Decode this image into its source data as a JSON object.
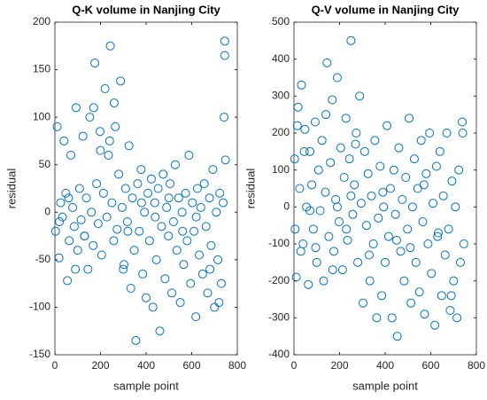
{
  "chart_data": [
    {
      "type": "scatter",
      "title": "Q-K volume in Nanjing City",
      "xlabel": "sample point",
      "ylabel": "residual",
      "color": "#0072bd",
      "xlim": [
        0,
        800
      ],
      "xticks": [
        0,
        200,
        400,
        600,
        800
      ],
      "ylim": [
        -150,
        200
      ],
      "yticks": [
        -150,
        -100,
        -50,
        0,
        50,
        100,
        150,
        200
      ],
      "x": [
        3,
        10,
        18,
        25,
        33,
        40,
        48,
        55,
        63,
        70,
        78,
        85,
        93,
        100,
        108,
        115,
        123,
        130,
        138,
        145,
        153,
        160,
        168,
        175,
        183,
        190,
        198,
        205,
        213,
        220,
        228,
        235,
        243,
        250,
        258,
        265,
        273,
        280,
        288,
        295,
        303,
        310,
        318,
        325,
        333,
        340,
        348,
        355,
        363,
        370,
        378,
        385,
        393,
        400,
        408,
        415,
        423,
        430,
        438,
        445,
        453,
        460,
        468,
        475,
        483,
        490,
        498,
        505,
        513,
        520,
        528,
        535,
        543,
        550,
        558,
        565,
        573,
        580,
        588,
        595,
        603,
        610,
        618,
        625,
        633,
        640,
        648,
        655,
        663,
        670,
        678,
        685,
        693,
        700,
        708,
        715,
        723,
        730,
        738,
        745,
        745,
        742,
        748,
        20,
        60,
        130,
        200,
        260,
        320,
        380,
        440,
        500,
        560,
        620,
        680,
        720,
        90,
        170,
        240,
        300
      ],
      "y": [
        -20,
        90,
        -48,
        10,
        -5,
        75,
        20,
        -72,
        -30,
        60,
        5,
        -15,
        110,
        -40,
        25,
        -8,
        80,
        -25,
        15,
        -60,
        100,
        0,
        -35,
        157,
        30,
        -12,
        85,
        -45,
        20,
        130,
        -5,
        60,
        175,
        10,
        -30,
        90,
        -18,
        40,
        138,
        5,
        -55,
        25,
        -10,
        70,
        -80,
        15,
        -40,
        -135,
        30,
        -20,
        45,
        -65,
        0,
        -90,
        20,
        -30,
        35,
        -100,
        10,
        -50,
        25,
        -125,
        -15,
        40,
        -70,
        5,
        -25,
        30,
        -85,
        -10,
        50,
        -40,
        15,
        -95,
        0,
        -55,
        20,
        -30,
        60,
        -75,
        10,
        -20,
        -110,
        25,
        -45,
        5,
        -65,
        30,
        -15,
        -85,
        15,
        -35,
        45,
        -100,
        0,
        -50,
        20,
        -75,
        10,
        180,
        165,
        100,
        55,
        -10,
        15,
        -25,
        65,
        115,
        -20,
        10,
        -5,
        15,
        -20,
        -5,
        -60,
        -95,
        -60,
        110,
        75,
        -60
      ]
    },
    {
      "type": "scatter",
      "title": "Q-V volume in Nanjing City",
      "xlabel": "sample point",
      "ylabel": "residual",
      "color": "#0072bd",
      "xlim": [
        0,
        800
      ],
      "xticks": [
        0,
        200,
        400,
        600,
        800
      ],
      "ylim": [
        -400,
        500
      ],
      "yticks": [
        -400,
        -300,
        -200,
        -100,
        0,
        100,
        200,
        300,
        400,
        500
      ],
      "x": [
        3,
        10,
        18,
        25,
        33,
        40,
        48,
        55,
        63,
        70,
        78,
        85,
        93,
        100,
        108,
        115,
        123,
        130,
        138,
        145,
        153,
        160,
        168,
        175,
        183,
        190,
        198,
        205,
        213,
        220,
        228,
        235,
        243,
        250,
        258,
        265,
        273,
        280,
        288,
        295,
        303,
        310,
        318,
        325,
        333,
        340,
        348,
        355,
        363,
        370,
        378,
        385,
        393,
        400,
        408,
        415,
        423,
        430,
        438,
        445,
        453,
        460,
        468,
        475,
        483,
        490,
        498,
        505,
        513,
        520,
        528,
        535,
        543,
        550,
        558,
        565,
        573,
        580,
        588,
        595,
        603,
        610,
        618,
        625,
        633,
        640,
        648,
        655,
        663,
        670,
        678,
        685,
        693,
        700,
        708,
        715,
        723,
        730,
        738,
        745,
        5,
        15,
        30,
        45,
        70,
        95,
        140,
        190,
        230,
        270,
        330,
        390,
        450,
        510,
        570,
        630,
        690,
        740,
        250,
        170
      ],
      "y": [
        130,
        -190,
        270,
        50,
        330,
        -100,
        210,
        0,
        -210,
        150,
        60,
        -60,
        230,
        -150,
        100,
        -10,
        180,
        -200,
        40,
        390,
        -80,
        120,
        290,
        -120,
        20,
        350,
        -40,
        160,
        -170,
        80,
        240,
        -90,
        130,
        450,
        -20,
        60,
        200,
        -150,
        300,
        10,
        -260,
        150,
        -50,
        90,
        -200,
        30,
        -100,
        180,
        -300,
        -30,
        110,
        -240,
        0,
        -150,
        220,
        -80,
        50,
        -300,
        100,
        -20,
        -350,
        160,
        -120,
        20,
        -200,
        80,
        -60,
        240,
        -260,
        0,
        130,
        -150,
        50,
        -230,
        180,
        -40,
        -290,
        90,
        -100,
        200,
        -180,
        10,
        -320,
        110,
        -70,
        150,
        -240,
        30,
        -130,
        200,
        -60,
        -280,
        70,
        -200,
        0,
        -300,
        100,
        -150,
        230,
        -100,
        -60,
        220,
        -120,
        150,
        -10,
        -110,
        250,
        0,
        -60,
        170,
        -130,
        40,
        -90,
        -110,
        60,
        -80,
        -240,
        200,
        30,
        -170
      ]
    }
  ]
}
